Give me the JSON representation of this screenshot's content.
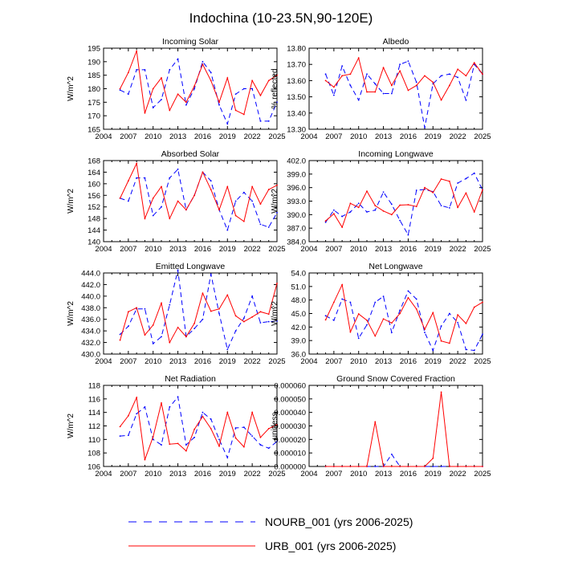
{
  "figure_title": "Indochina (10-23.5N,90-120E)",
  "legend": [
    {
      "label": "NOURB_001 (yrs 2006-2025)",
      "color": "#0000ff",
      "style": "dashed"
    },
    {
      "label": "URB_001 (yrs 2006-2025)",
      "color": "#ff0000",
      "style": "solid"
    }
  ],
  "chart_data": [
    {
      "type": "line",
      "title": "Incoming Solar",
      "ylabel": "W/m^2",
      "x": [
        2006,
        2007,
        2008,
        2009,
        2010,
        2011,
        2012,
        2013,
        2014,
        2015,
        2016,
        2017,
        2018,
        2019,
        2020,
        2021,
        2022,
        2023,
        2024,
        2025
      ],
      "xlim": [
        2004,
        2025
      ],
      "xticks": [
        "2004",
        "2007",
        "2010",
        "2013",
        "2016",
        "2019",
        "2022",
        "2025"
      ],
      "ylim": [
        165,
        195
      ],
      "yticks": [
        "165",
        "170",
        "175",
        "180",
        "185",
        "190",
        "195"
      ],
      "series": [
        {
          "name": "NOURB_001",
          "color": "#0000ff",
          "style": "dashed",
          "values": [
            179.5,
            178,
            187,
            187,
            173,
            176,
            187,
            191,
            174,
            180,
            190,
            186,
            174,
            167,
            178,
            180,
            180,
            168,
            168,
            175
          ]
        },
        {
          "name": "URB_001",
          "color": "#ff0000",
          "style": "solid",
          "values": [
            180,
            186,
            194,
            171,
            180,
            184,
            172,
            178,
            175,
            181,
            189,
            183,
            175,
            184,
            172,
            170.5,
            183,
            177.5,
            183,
            185
          ]
        }
      ]
    },
    {
      "type": "line",
      "title": "Albedo",
      "ylabel": "% reflected",
      "x": [
        2006,
        2007,
        2008,
        2009,
        2010,
        2011,
        2012,
        2013,
        2014,
        2015,
        2016,
        2017,
        2018,
        2019,
        2020,
        2021,
        2022,
        2023,
        2024,
        2025
      ],
      "xlim": [
        2004,
        2025
      ],
      "xticks": [
        "2004",
        "2007",
        "2010",
        "2013",
        "2016",
        "2019",
        "2022",
        "2025"
      ],
      "ylim": [
        13.3,
        13.8
      ],
      "yticks": [
        "13.30",
        "13.40",
        "13.50",
        "13.60",
        "13.70",
        "13.80"
      ],
      "series": [
        {
          "name": "NOURB_001",
          "color": "#0000ff",
          "style": "dashed",
          "values": [
            13.64,
            13.51,
            13.69,
            13.57,
            13.48,
            13.64,
            13.58,
            13.52,
            13.52,
            13.7,
            13.72,
            13.59,
            13.31,
            13.58,
            13.63,
            13.64,
            13.62,
            13.48,
            13.7,
            13.64
          ]
        },
        {
          "name": "URB_001",
          "color": "#ff0000",
          "style": "solid",
          "values": [
            13.6,
            13.56,
            13.63,
            13.64,
            13.74,
            13.53,
            13.53,
            13.68,
            13.57,
            13.66,
            13.54,
            13.57,
            13.63,
            13.59,
            13.48,
            13.57,
            13.67,
            13.63,
            13.71,
            13.64
          ]
        }
      ]
    },
    {
      "type": "line",
      "title": "Absorbed Solar",
      "ylabel": "W/m^2",
      "x": [
        2006,
        2007,
        2008,
        2009,
        2010,
        2011,
        2012,
        2013,
        2014,
        2015,
        2016,
        2017,
        2018,
        2019,
        2020,
        2021,
        2022,
        2023,
        2024,
        2025
      ],
      "xlim": [
        2004,
        2025
      ],
      "xticks": [
        "2004",
        "2007",
        "2010",
        "2013",
        "2016",
        "2019",
        "2022",
        "2025"
      ],
      "ylim": [
        140,
        168
      ],
      "yticks": [
        "140",
        "144",
        "148",
        "152",
        "156",
        "160",
        "164",
        "168"
      ],
      "series": [
        {
          "name": "NOURB_001",
          "color": "#0000ff",
          "style": "dashed",
          "values": [
            155,
            154,
            162,
            162,
            149,
            152,
            162,
            165,
            151,
            156,
            164,
            161,
            151,
            144,
            154,
            157,
            154,
            146,
            145,
            150
          ]
        },
        {
          "name": "URB_001",
          "color": "#ff0000",
          "style": "solid",
          "values": [
            155,
            161,
            167,
            148,
            155,
            159,
            148,
            154,
            151,
            156,
            164,
            158,
            151,
            159,
            149,
            147,
            159,
            153,
            158,
            159.5
          ]
        }
      ]
    },
    {
      "type": "line",
      "title": "Incoming Longwave",
      "ylabel": "W/m^2",
      "x": [
        2006,
        2007,
        2008,
        2009,
        2010,
        2011,
        2012,
        2013,
        2014,
        2015,
        2016,
        2017,
        2018,
        2019,
        2020,
        2021,
        2022,
        2023,
        2024,
        2025
      ],
      "xlim": [
        2004,
        2025
      ],
      "xticks": [
        "2004",
        "2007",
        "2010",
        "2013",
        "2016",
        "2019",
        "2022",
        "2025"
      ],
      "ylim": [
        384.0,
        402.0
      ],
      "yticks": [
        "384.0",
        "387.0",
        "390.0",
        "393.0",
        "396.0",
        "399.0",
        "402.0"
      ],
      "series": [
        {
          "name": "NOURB_001",
          "color": "#0000ff",
          "style": "dashed",
          "values": [
            388.3,
            391,
            389.6,
            390.6,
            392.5,
            390.6,
            391.0,
            395.0,
            392.3,
            388.7,
            385.5,
            395.4,
            395.6,
            395.1,
            392.0,
            391.5,
            397.0,
            398.0,
            399.2,
            395.5
          ]
        },
        {
          "name": "URB_001",
          "color": "#ff0000",
          "style": "solid",
          "values": [
            388.6,
            390.2,
            387.2,
            392.5,
            391.6,
            395.2,
            392.0,
            390.8,
            390.0,
            392.1,
            392.2,
            391.8,
            396.0,
            394.9,
            397.9,
            397.4,
            391.6,
            394.8,
            390.6,
            395.5
          ]
        }
      ]
    },
    {
      "type": "line",
      "title": "Emitted Longwave",
      "ylabel": "W/m^2",
      "x": [
        2006,
        2007,
        2008,
        2009,
        2010,
        2011,
        2012,
        2013,
        2014,
        2015,
        2016,
        2017,
        2018,
        2019,
        2020,
        2021,
        2022,
        2023,
        2024,
        2025
      ],
      "xlim": [
        2004,
        2025
      ],
      "xticks": [
        "2004",
        "2007",
        "2010",
        "2013",
        "2016",
        "2019",
        "2022",
        "2025"
      ],
      "ylim": [
        430.0,
        444.0
      ],
      "yticks": [
        "430.0",
        "432.0",
        "434.0",
        "436.0",
        "438.0",
        "440.0",
        "442.0",
        "444.0"
      ],
      "series": [
        {
          "name": "NOURB_001",
          "color": "#0000ff",
          "style": "dashed",
          "values": [
            433.4,
            434.8,
            437.8,
            437.8,
            431.8,
            433.0,
            438.5,
            444.5,
            433.0,
            434.4,
            436.0,
            443.8,
            437.0,
            430.8,
            434.0,
            436.2,
            440.0,
            435.4,
            435.6,
            435.7
          ]
        },
        {
          "name": "URB_001",
          "color": "#ff0000",
          "style": "solid",
          "values": [
            432.4,
            437.3,
            438.0,
            433.3,
            435.0,
            438.8,
            432.0,
            434.6,
            433.0,
            435.3,
            440.5,
            437.4,
            437.8,
            440.2,
            436.6,
            435.6,
            436.4,
            437.3,
            436.9,
            442.2
          ]
        }
      ]
    },
    {
      "type": "line",
      "title": "Net Longwave",
      "ylabel": "W/m^2",
      "x": [
        2006,
        2007,
        2008,
        2009,
        2010,
        2011,
        2012,
        2013,
        2014,
        2015,
        2016,
        2017,
        2018,
        2019,
        2020,
        2021,
        2022,
        2023,
        2024,
        2025
      ],
      "xlim": [
        2004,
        2025
      ],
      "xticks": [
        "2004",
        "2007",
        "2010",
        "2013",
        "2016",
        "2019",
        "2022",
        "2025"
      ],
      "ylim": [
        36.0,
        54.0
      ],
      "yticks": [
        "36.0",
        "39.0",
        "42.0",
        "45.0",
        "48.0",
        "51.0",
        "54.0"
      ],
      "series": [
        {
          "name": "NOURB_001",
          "color": "#0000ff",
          "style": "dashed",
          "values": [
            44.5,
            43.5,
            48.2,
            47.5,
            39.5,
            42.5,
            47.5,
            48.8,
            40.8,
            45.7,
            50.0,
            48.2,
            40.8,
            36.8,
            42.2,
            45.0,
            43.0,
            37.0,
            36.8,
            40.4
          ]
        },
        {
          "name": "URB_001",
          "color": "#ff0000",
          "style": "solid",
          "values": [
            43.6,
            47.5,
            51.4,
            40.9,
            44.9,
            43.5,
            40.0,
            43.8,
            42.9,
            45.0,
            48.5,
            46.0,
            41.5,
            45.2,
            38.9,
            38.4,
            44.7,
            42.8,
            46.4,
            47.5
          ]
        }
      ]
    },
    {
      "type": "line",
      "title": "Net Radiation",
      "ylabel": "W/m^2",
      "x": [
        2006,
        2007,
        2008,
        2009,
        2010,
        2011,
        2012,
        2013,
        2014,
        2015,
        2016,
        2017,
        2018,
        2019,
        2020,
        2021,
        2022,
        2023,
        2024,
        2025
      ],
      "xlim": [
        2004,
        2025
      ],
      "xticks": [
        "2004",
        "2007",
        "2010",
        "2013",
        "2016",
        "2019",
        "2022",
        "2025"
      ],
      "ylim": [
        106,
        118
      ],
      "yticks": [
        "106",
        "108",
        "110",
        "112",
        "114",
        "116",
        "118"
      ],
      "series": [
        {
          "name": "NOURB_001",
          "color": "#0000ff",
          "style": "dashed",
          "values": [
            110.5,
            110.6,
            113.8,
            114.8,
            110.0,
            109.2,
            114.8,
            116.3,
            109.2,
            110.3,
            114.0,
            113.0,
            110.0,
            107.3,
            111.7,
            111.8,
            110.5,
            109.2,
            108.7,
            109.7
          ]
        },
        {
          "name": "URB_001",
          "color": "#ff0000",
          "style": "solid",
          "values": [
            111.9,
            113.5,
            116.2,
            107.0,
            110.4,
            115.4,
            109.3,
            109.4,
            108.3,
            111.5,
            113.4,
            111.6,
            109.0,
            114.0,
            110.2,
            108.9,
            114.0,
            110.3,
            111.6,
            112.2
          ]
        }
      ]
    },
    {
      "type": "line",
      "title": "Ground Snow Covered Fraction",
      "ylabel": "unitless",
      "x": [
        2006,
        2007,
        2008,
        2009,
        2010,
        2011,
        2012,
        2013,
        2014,
        2015,
        2016,
        2017,
        2018,
        2019,
        2020,
        2021,
        2022,
        2023,
        2024,
        2025
      ],
      "xlim": [
        2004,
        2025
      ],
      "xticks": [
        "2004",
        "2007",
        "2010",
        "2013",
        "2016",
        "2019",
        "2022",
        "2025"
      ],
      "ylim": [
        0,
        6e-05
      ],
      "yticks": [
        "0.000000",
        "0.000010",
        "0.000020",
        "0.000030",
        "0.000040",
        "0.000050",
        "0.000060"
      ],
      "series": [
        {
          "name": "NOURB_001",
          "color": "#0000ff",
          "style": "dashed",
          "values": [
            0,
            0,
            0,
            0,
            0,
            0,
            0,
            0,
            9e-06,
            0,
            0,
            0,
            0,
            0,
            0,
            0,
            0,
            0,
            0,
            0
          ]
        },
        {
          "name": "URB_001",
          "color": "#ff0000",
          "style": "solid",
          "values": [
            0,
            0,
            0,
            0,
            0,
            0,
            3.3e-05,
            0,
            0,
            0,
            0,
            0,
            0,
            6e-06,
            5.5e-05,
            0,
            0,
            0,
            0,
            0
          ]
        }
      ]
    }
  ]
}
